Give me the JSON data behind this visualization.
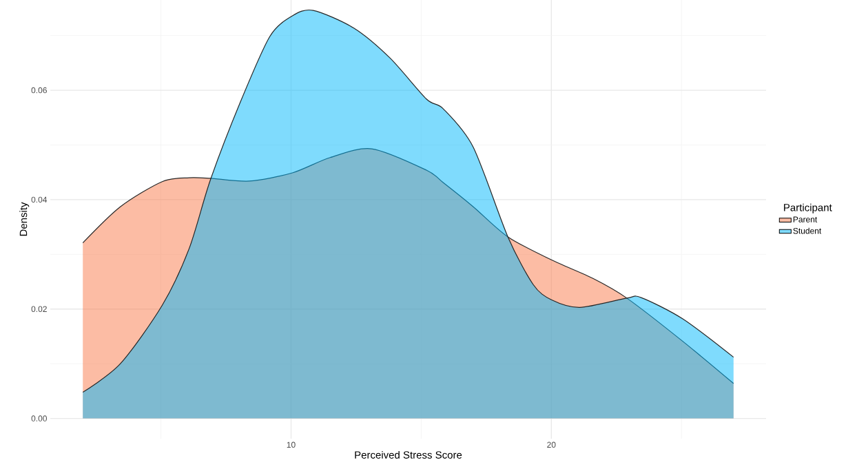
{
  "chart_data": {
    "type": "area",
    "xlabel": "Perceived Stress Score",
    "ylabel": "Density",
    "legend_title": "Participant",
    "xlim": [
      0.75,
      28.25
    ],
    "ylim": [
      -0.0037,
      0.0765
    ],
    "xticks": [
      10,
      20
    ],
    "yticks": [
      {
        "value": 0,
        "label": "0.00"
      },
      {
        "value": 0.02,
        "label": "0.02"
      },
      {
        "value": 0.04,
        "label": "0.04"
      },
      {
        "value": 0.06,
        "label": "0.06"
      }
    ],
    "grid": true,
    "legend": "right",
    "series": [
      {
        "name": "Parent",
        "color": "#fa7a4a",
        "x": [
          2,
          3.44,
          5.05,
          6.08,
          6.9,
          8.4,
          10.05,
          11.5,
          13.1,
          15.2,
          15.85,
          17.0,
          18.33,
          20,
          21.6,
          22.9,
          25.05,
          27
        ],
        "values": [
          0.0321,
          0.0387,
          0.0433,
          0.044,
          0.0439,
          0.0434,
          0.0449,
          0.0477,
          0.0493,
          0.0454,
          0.0431,
          0.0387,
          0.0332,
          0.029,
          0.0256,
          0.022,
          0.0141,
          0.0064
        ]
      },
      {
        "name": "Student",
        "color": "#00b8fc",
        "x": [
          2,
          3.44,
          5.05,
          6.08,
          6.9,
          8.04,
          9.18,
          10.05,
          10.85,
          12.4,
          13.8,
          15.2,
          15.85,
          17.0,
          18.33,
          19.3,
          20,
          21.1,
          22.9,
          23.45,
          25.05,
          27
        ],
        "values": [
          0.0048,
          0.01,
          0.0207,
          0.031,
          0.0436,
          0.0577,
          0.0698,
          0.0736,
          0.0746,
          0.0714,
          0.0659,
          0.0584,
          0.0566,
          0.0496,
          0.0332,
          0.0245,
          0.0217,
          0.0203,
          0.022,
          0.0221,
          0.0182,
          0.0112
        ]
      }
    ]
  }
}
